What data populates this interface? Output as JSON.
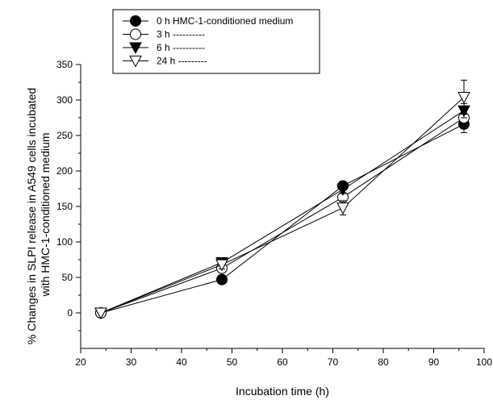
{
  "chart_data": {
    "type": "line",
    "xlabel": "Incubation time (h)",
    "ylabel_lines": [
      "% Changes in SLPI release in A549 cells incubated",
      "with HMC-1-conditioned medium"
    ],
    "xlim": [
      20,
      100
    ],
    "ylim": [
      -50,
      350
    ],
    "x_ticks": [
      20,
      30,
      40,
      50,
      60,
      70,
      80,
      90,
      100
    ],
    "y_ticks": [
      0,
      50,
      100,
      150,
      200,
      250,
      300,
      350
    ],
    "grid": false,
    "legend_position": "top-left",
    "series": [
      {
        "name": "0 h HMC-1-conditioned medium",
        "marker": "filled-circle",
        "x": [
          24,
          48,
          72,
          96
        ],
        "y": [
          0,
          47,
          179,
          266
        ],
        "err": [
          0,
          0,
          5,
          12
        ]
      },
      {
        "name": "3 h ----------",
        "marker": "open-circle",
        "x": [
          24,
          48,
          72,
          96
        ],
        "y": [
          0,
          63,
          163,
          275
        ],
        "err": [
          0,
          0,
          6,
          8
        ]
      },
      {
        "name": "6 h ----------",
        "marker": "filled-triangle-down",
        "x": [
          24,
          48,
          72,
          96
        ],
        "y": [
          0,
          71,
          174,
          285
        ],
        "err": [
          0,
          5,
          6,
          10
        ]
      },
      {
        "name": "24 h ---------",
        "marker": "open-triangle-down",
        "x": [
          24,
          48,
          72,
          96
        ],
        "y": [
          0,
          68,
          148,
          304
        ],
        "err": [
          0,
          6,
          10,
          24
        ]
      }
    ]
  }
}
